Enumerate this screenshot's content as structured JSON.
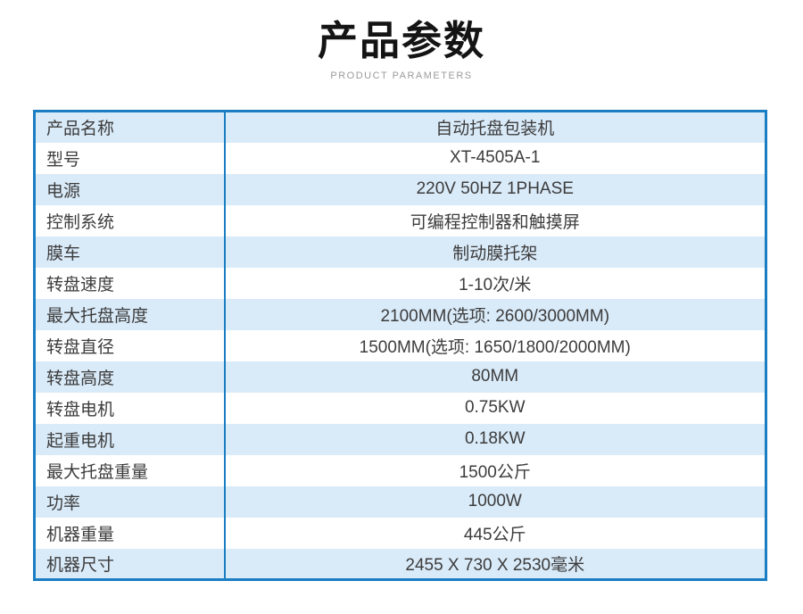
{
  "page": {
    "title": "产品参数",
    "subtitle": "PRODUCT PARAMETERS"
  },
  "table": {
    "rows": [
      {
        "label": "产品名称",
        "value": "自动托盘包装机"
      },
      {
        "label": "型号",
        "value": "XT-4505A-1"
      },
      {
        "label": "电源",
        "value": "220V 50HZ 1PHASE"
      },
      {
        "label": "控制系统",
        "value": "可编程控制器和触摸屏"
      },
      {
        "label": "膜车",
        "value": "制动膜托架"
      },
      {
        "label": "转盘速度",
        "value": "1-10次/米"
      },
      {
        "label": "最大托盘高度",
        "value": "2100MM(选项: 2600/3000MM)"
      },
      {
        "label": "转盘直径",
        "value": "1500MM(选项: 1650/1800/2000MM)"
      },
      {
        "label": "转盘高度",
        "value": "80MM"
      },
      {
        "label": "转盘电机",
        "value": "0.75KW"
      },
      {
        "label": "起重电机",
        "value": "0.18KW"
      },
      {
        "label": "最大托盘重量",
        "value": "1500公斤"
      },
      {
        "label": "功率",
        "value": "1000W"
      },
      {
        "label": "机器重量",
        "value": "445公斤"
      },
      {
        "label": "机器尺寸",
        "value": "2455 X 730 X 2530毫米"
      }
    ]
  },
  "colors": {
    "border": "#1b7dc2",
    "row_alt": "#d9eaf8",
    "row_plain": "#ffffff",
    "text": "#3c3c3c",
    "title": "#141414",
    "subtitle": "#9b9b9b"
  }
}
